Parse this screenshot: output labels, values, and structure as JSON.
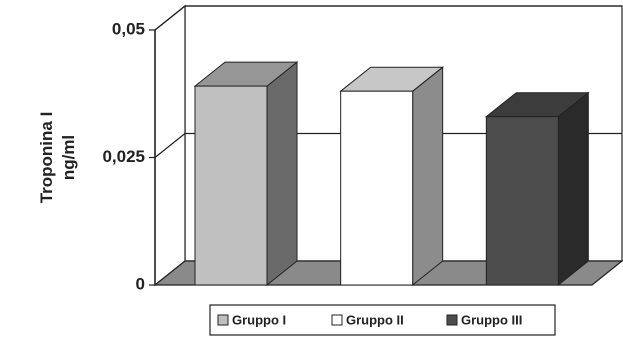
{
  "chart_data": {
    "type": "bar3d",
    "ylabel": [
      "Troponina I",
      "ng/ml"
    ],
    "categories": [
      null
    ],
    "series": [
      {
        "name": "Gruppo I",
        "color": "#c0c0c0",
        "values": [
          0.039
        ]
      },
      {
        "name": "Gruppo II",
        "color": "#ffffff",
        "values": [
          0.038
        ]
      },
      {
        "name": "Gruppo III",
        "color": "#4d4d4d",
        "values": [
          0.033
        ]
      }
    ],
    "ylim": [
      0,
      0.05
    ],
    "yticks": [
      0,
      {
        "value": 0.025,
        "label": "0,025"
      },
      {
        "value": 0.05,
        "label": "0,05"
      }
    ],
    "grid": true,
    "legend": "bottom"
  }
}
